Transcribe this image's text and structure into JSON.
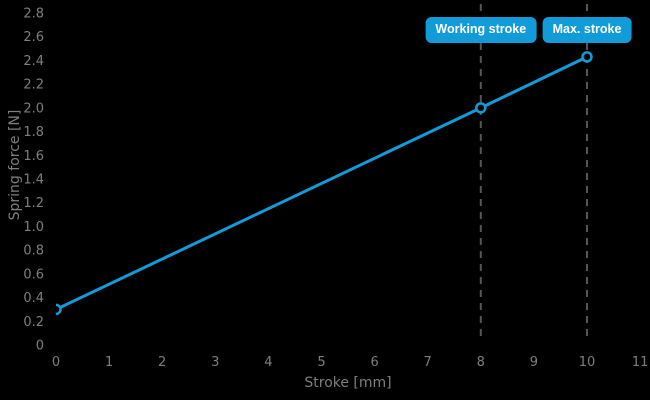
{
  "page": {
    "background": "#000000"
  },
  "colors": {
    "accent": "#119bd8",
    "tick_text": "#7e7e7e",
    "guide_line": "#555555",
    "badge_background": "#119bd8",
    "badge_text": "#ffffff",
    "marker_fill": "#000000"
  },
  "chart_data": {
    "type": "line",
    "title": "",
    "xlabel": "Stroke [mm]",
    "ylabel": "Spring force [N]",
    "xlim": [
      0,
      11
    ],
    "ylim": [
      0,
      2.8
    ],
    "x_ticks": [
      0,
      1,
      2,
      3,
      4,
      5,
      6,
      7,
      8,
      9,
      10,
      11
    ],
    "y_ticks": [
      0,
      0.2,
      0.4,
      0.6,
      0.8,
      1.0,
      1.2,
      1.4,
      1.6,
      1.8,
      2.0,
      2.2,
      2.4,
      2.6,
      2.8
    ],
    "grid": false,
    "legend": false,
    "series": [
      {
        "name": "Spring force",
        "color": "#119bd8",
        "marker": "open-circle",
        "points": [
          [
            0,
            0.3
          ],
          [
            8,
            2.0
          ],
          [
            10,
            2.43
          ]
        ]
      }
    ],
    "guides_x": [
      8,
      10
    ],
    "annotations": [
      {
        "x": 8,
        "label": "Working stroke"
      },
      {
        "x": 10,
        "label": "Max. stroke"
      }
    ]
  }
}
